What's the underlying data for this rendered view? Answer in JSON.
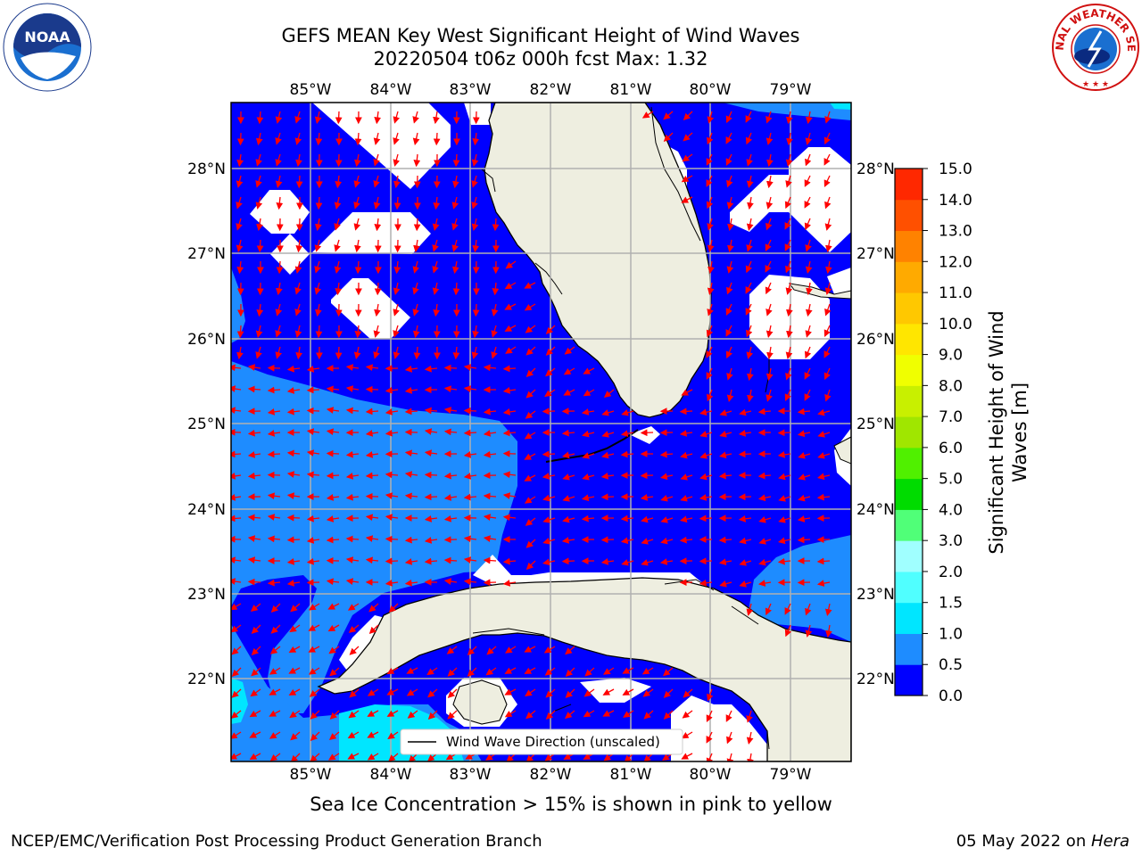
{
  "title_line1": "GEFS MEAN Key West Significant Height of Wind Waves",
  "title_line2": "20220504 t06z 000h fcst   Max: 1.32",
  "longitudes": [
    "85°W",
    "84°W",
    "83°W",
    "82°W",
    "81°W",
    "80°W",
    "79°W"
  ],
  "latitudes": [
    "28°N",
    "27°N",
    "26°N",
    "25°N",
    "24°N",
    "23°N",
    "22°N"
  ],
  "legend_label": "Wind Wave Direction (unscaled)",
  "colorbar": {
    "label": "Significant Height of Wind Waves [m]",
    "label_line1": "Significant Height of Wind",
    "label_line2": "Waves [m]",
    "ticks": [
      "0.0",
      "0.5",
      "1.0",
      "1.5",
      "2.0",
      "3.0",
      "4.0",
      "5.0",
      "6.0",
      "7.0",
      "8.0",
      "9.0",
      "10.0",
      "11.0",
      "12.0",
      "13.0",
      "14.0",
      "15.0"
    ],
    "colors": [
      "#0000ff",
      "#1e8cff",
      "#00e6ff",
      "#50ffff",
      "#a0ffff",
      "#50ff78",
      "#00dc00",
      "#50f000",
      "#a0e600",
      "#c8f000",
      "#f0ff00",
      "#ffe600",
      "#ffc800",
      "#ffaa00",
      "#ff8200",
      "#ff5000",
      "#ff2800",
      "#ff0000"
    ]
  },
  "bottom_note": "Sea Ice Concentration > 15% is shown in pink to yellow",
  "footer_left": "NCEP/EMC/Verification Post Processing Product Generation Branch",
  "footer_date": "05 May 2022 on ",
  "footer_machine": "Hera",
  "logos": {
    "noaa": "NOAA",
    "nws": "NATIONAL WEATHER SERVICE"
  },
  "colors": {
    "land": "#eeeee0",
    "arrow": "#ff0000",
    "grid": "#b0b0b0",
    "water_low": "#0000ff",
    "water_mid": "#1e8cff",
    "water_high": "#00e6ff",
    "water_top": "#50ffff"
  }
}
